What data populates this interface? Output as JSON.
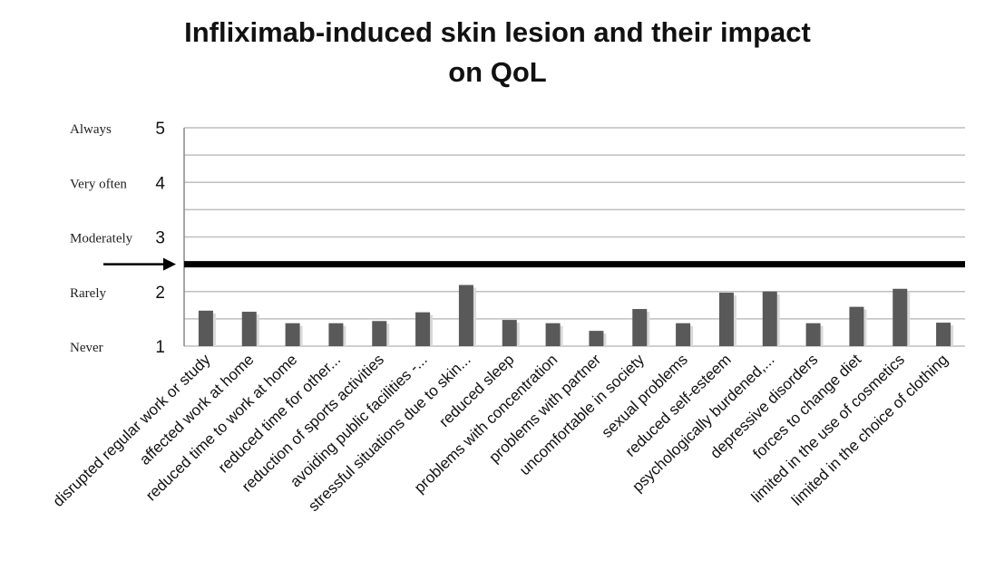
{
  "chart_data": {
    "type": "bar",
    "title_line1": "Infliximab-induced skin lesion and their impact",
    "title_line2": "on QoL",
    "categories": [
      "disrupted  regular work or study",
      "affected work at home",
      "reduced time  to work at home",
      "reduced time  for other...",
      "reduction of sports activities",
      "avoiding public facilities -...",
      "stressful situations due to skin...",
      "reduced sleep",
      "problems with concentration",
      "problems with partner",
      "uncomfortable in society",
      "sexual problems",
      "reduced self-esteem",
      "psychologically burdened,...",
      "depressive disorders",
      "forces to change diet",
      "limited in the use of cosmetics",
      "limited in the choice of clothing"
    ],
    "values": [
      1.65,
      1.63,
      1.42,
      1.42,
      1.46,
      1.62,
      2.12,
      1.48,
      1.42,
      1.28,
      1.68,
      1.42,
      1.98,
      2.0,
      1.42,
      1.72,
      2.05,
      1.43
    ],
    "ylim": [
      1,
      5
    ],
    "yticks": [
      1,
      2,
      3,
      4,
      5
    ],
    "ytick_words": [
      {
        "value": 5,
        "label": "Always"
      },
      {
        "value": 4,
        "label": "Very often"
      },
      {
        "value": 3,
        "label": "Moderately"
      },
      {
        "value": 2,
        "label": "Rarely"
      },
      {
        "value": 1,
        "label": "Never"
      }
    ],
    "threshold": 2.5,
    "grid": true,
    "bar_color": "#595959",
    "threshold_color": "#000000",
    "grid_color": "#bfbfbf"
  }
}
